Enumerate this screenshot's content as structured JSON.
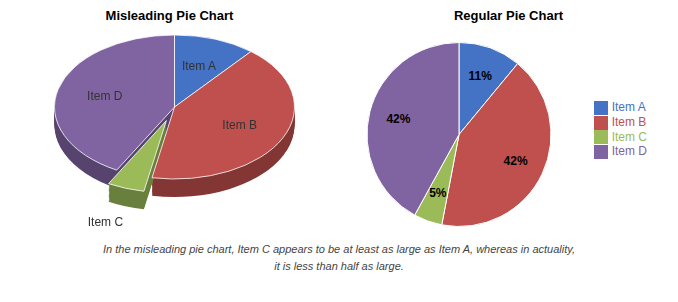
{
  "chart_data": [
    {
      "type": "pie3d",
      "title": "Misleading Pie Chart",
      "categories": [
        "Item A",
        "Item B",
        "Item C",
        "Item D"
      ],
      "values": [
        11,
        42,
        5,
        42
      ],
      "colors": [
        "#4472C4",
        "#C0504D",
        "#9BBB59",
        "#8064A2"
      ],
      "annotations": [
        "In the misleading pie chart, Item C appears to be at least as large as Item A, whereas in actuality,",
        "it is less than half as large."
      ]
    },
    {
      "type": "pie",
      "title": "Regular Pie Chart",
      "categories": [
        "Item A",
        "Item B",
        "Item C",
        "Item D"
      ],
      "values": [
        11,
        42,
        5,
        42
      ],
      "value_labels": [
        "11%",
        "42%",
        "5%",
        "42%"
      ],
      "data_labels": true,
      "colors": [
        "#4472C4",
        "#C0504D",
        "#9BBB59",
        "#8064A2"
      ],
      "legend": "right"
    }
  ]
}
